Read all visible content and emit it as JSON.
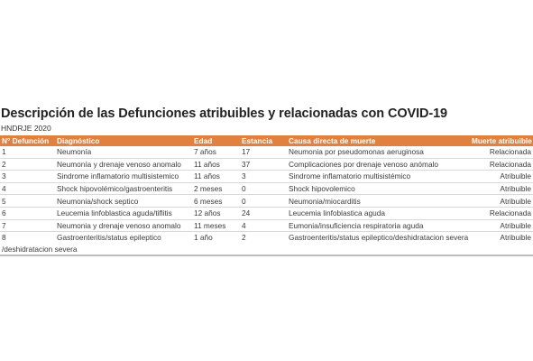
{
  "title": "Descripción de las Defunciones atribuibles y relacionadas con COVID-19",
  "subtitle": "HNDRJE 2020",
  "columns": [
    "N° Defunción",
    "Diagnóstico",
    "Edad",
    "Estancia",
    "Causa directa de muerte",
    "Muerte atribuible"
  ],
  "rows": [
    {
      "n": "1",
      "diagnostico": "Neumonía",
      "edad": "7 años",
      "estancia": "17",
      "causa": "Neumonia por pseudomonas aeruginosa",
      "muerte": "Relacionada"
    },
    {
      "n": "2",
      "diagnostico": "Neumonía y drenaje venoso anomalo",
      "edad": "11 años",
      "estancia": "37",
      "causa": "Complicaciones por drenaje venoso anómalo",
      "muerte": "Relacionada"
    },
    {
      "n": "3",
      "diagnostico": "Sindrome inflamatorio multisistemico",
      "edad": "11 años",
      "estancia": "3",
      "causa": "Sindrome inflamatorio multisistémico",
      "muerte": "Atribuible"
    },
    {
      "n": "4",
      "diagnostico": "Shock hipovolémico/gastroenteritis",
      "edad": "2 meses",
      "estancia": "0",
      "causa": "Shock hipovolemico",
      "muerte": "Atribuible"
    },
    {
      "n": "5",
      "diagnostico": "Neumonia/shock septico",
      "edad": "6 meses",
      "estancia": "0",
      "causa": "Neumonia/miocarditis",
      "muerte": "Atribuible"
    },
    {
      "n": "6",
      "diagnostico": "Leucemia linfoblastica aguda/tiflitis",
      "edad": "12 años",
      "estancia": "24",
      "causa": "Leucemia linfoblastica aguda",
      "muerte": "Relacionada"
    },
    {
      "n": "7",
      "diagnostico": "Neumonia y drenaje venoso anomalo",
      "edad": "11 meses",
      "estancia": "4",
      "causa": "Eumonia/insuficiencia respiratoria aguda",
      "muerte": "Atribuible"
    },
    {
      "n": "8",
      "diagnostico": "Gastroenteritis/status epileptico",
      "edad": "1 año",
      "estancia": "2",
      "causa": "Gastroenteritis/status epileptico/deshidratacion severa",
      "muerte": "Atribuible"
    }
  ],
  "continuation": "/deshidratacion severa"
}
